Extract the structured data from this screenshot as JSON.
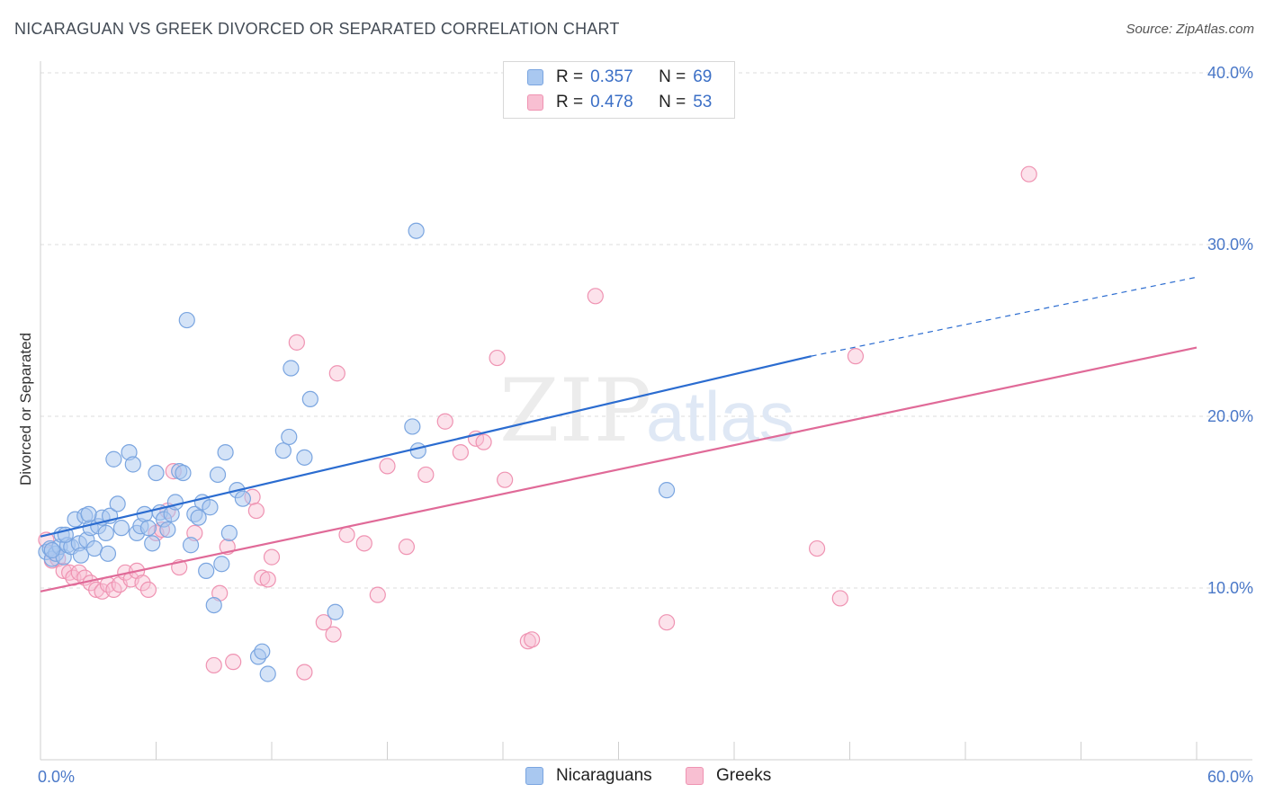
{
  "title": "NICARAGUAN VS GREEK DIVORCED OR SEPARATED CORRELATION CHART",
  "source": "Source: ZipAtlas.com",
  "watermark": {
    "zip": "ZIP",
    "atlas": "atlas"
  },
  "colors": {
    "blue_fill": "#a9c8f0",
    "blue_stroke": "#7aa5e0",
    "blue_line": "#2b6cd0",
    "pink_fill": "#f8bfd2",
    "pink_stroke": "#ef93b2",
    "pink_line": "#e06a98",
    "tick_text": "#4a78c8",
    "grid": "#dcdcdc"
  },
  "legend": {
    "rows": [
      {
        "r_label": "R =",
        "r_value": "0.357",
        "n_label": "N =",
        "n_value": "69",
        "color": "#a9c8f0",
        "border": "#7aa5e0"
      },
      {
        "r_label": "R =",
        "r_value": "0.478",
        "n_label": "N =",
        "n_value": "53",
        "color": "#f8bfd2",
        "border": "#ef93b2"
      }
    ]
  },
  "bottom_legend": [
    {
      "label": "Nicaraguans",
      "color": "#a9c8f0",
      "border": "#7aa5e0"
    },
    {
      "label": "Greeks",
      "color": "#f8bfd2",
      "border": "#ef93b2"
    }
  ],
  "chart_data": {
    "type": "scatter",
    "ylabel": "Divorced or Separated",
    "xlim": [
      0,
      60
    ],
    "ylim": [
      0,
      40
    ],
    "x_ticks": [
      {
        "value": 0,
        "label": "0.0%"
      },
      {
        "value": 60,
        "label": "60.0%"
      }
    ],
    "y_ticks": [
      {
        "value": 10,
        "label": "10.0%"
      },
      {
        "value": 20,
        "label": "20.0%"
      },
      {
        "value": 30,
        "label": "30.0%"
      },
      {
        "value": 40,
        "label": "40.0%"
      }
    ],
    "grid": true,
    "series": [
      {
        "name": "Nicaraguans",
        "trend": {
          "x": [
            0,
            40
          ],
          "y": [
            13.0,
            23.5
          ],
          "dashed_to_x": 60,
          "dashed_to_y": 28.1
        },
        "points": [
          [
            0.3,
            12.1
          ],
          [
            0.5,
            12.3
          ],
          [
            0.6,
            11.7
          ],
          [
            0.8,
            12.0
          ],
          [
            1.0,
            12.4
          ],
          [
            1.1,
            13.1
          ],
          [
            1.2,
            11.8
          ],
          [
            1.4,
            12.5
          ],
          [
            1.6,
            12.4
          ],
          [
            1.8,
            14.0
          ],
          [
            2.0,
            12.6
          ],
          [
            2.1,
            11.9
          ],
          [
            2.3,
            14.2
          ],
          [
            2.4,
            12.8
          ],
          [
            2.6,
            13.5
          ],
          [
            2.8,
            12.3
          ],
          [
            3.0,
            13.6
          ],
          [
            3.2,
            14.1
          ],
          [
            3.4,
            13.2
          ],
          [
            3.5,
            12.0
          ],
          [
            3.6,
            14.2
          ],
          [
            3.8,
            17.5
          ],
          [
            4.0,
            14.9
          ],
          [
            4.2,
            13.5
          ],
          [
            4.6,
            17.9
          ],
          [
            4.8,
            17.2
          ],
          [
            5.0,
            13.2
          ],
          [
            5.2,
            13.6
          ],
          [
            5.4,
            14.3
          ],
          [
            5.6,
            13.5
          ],
          [
            5.8,
            12.6
          ],
          [
            6.0,
            16.7
          ],
          [
            6.2,
            14.4
          ],
          [
            6.4,
            14.0
          ],
          [
            6.6,
            13.4
          ],
          [
            6.8,
            14.3
          ],
          [
            7.0,
            15.0
          ],
          [
            7.2,
            16.8
          ],
          [
            7.4,
            16.7
          ],
          [
            7.6,
            25.6
          ],
          [
            7.8,
            12.5
          ],
          [
            8.0,
            14.3
          ],
          [
            8.2,
            14.1
          ],
          [
            8.4,
            15.0
          ],
          [
            8.6,
            11.0
          ],
          [
            8.8,
            14.7
          ],
          [
            9.0,
            9.0
          ],
          [
            9.2,
            16.6
          ],
          [
            9.4,
            11.4
          ],
          [
            9.6,
            17.9
          ],
          [
            9.8,
            13.2
          ],
          [
            10.2,
            15.7
          ],
          [
            10.5,
            15.2
          ],
          [
            11.3,
            6.0
          ],
          [
            11.5,
            6.3
          ],
          [
            11.8,
            5.0
          ],
          [
            12.6,
            18.0
          ],
          [
            12.9,
            18.8
          ],
          [
            13.0,
            22.8
          ],
          [
            13.7,
            17.6
          ],
          [
            14.0,
            21.0
          ],
          [
            15.3,
            8.6
          ],
          [
            19.3,
            19.4
          ],
          [
            19.6,
            18.0
          ],
          [
            19.5,
            30.8
          ],
          [
            32.5,
            15.7
          ],
          [
            0.6,
            12.2
          ],
          [
            1.3,
            13.1
          ],
          [
            2.5,
            14.3
          ]
        ]
      },
      {
        "name": "Greeks",
        "trend": {
          "x": [
            0,
            60
          ],
          "y": [
            9.8,
            24.0
          ]
        },
        "points": [
          [
            0.3,
            12.8
          ],
          [
            0.6,
            11.6
          ],
          [
            0.9,
            11.7
          ],
          [
            1.2,
            11.0
          ],
          [
            1.5,
            10.9
          ],
          [
            1.7,
            10.6
          ],
          [
            2.0,
            10.9
          ],
          [
            2.3,
            10.6
          ],
          [
            2.6,
            10.3
          ],
          [
            2.9,
            9.9
          ],
          [
            3.2,
            9.8
          ],
          [
            3.5,
            10.2
          ],
          [
            3.8,
            9.9
          ],
          [
            4.1,
            10.2
          ],
          [
            4.4,
            10.9
          ],
          [
            4.7,
            10.5
          ],
          [
            5.0,
            11.0
          ],
          [
            5.3,
            10.3
          ],
          [
            5.6,
            9.9
          ],
          [
            6.0,
            13.2
          ],
          [
            6.3,
            13.4
          ],
          [
            6.6,
            14.5
          ],
          [
            6.9,
            16.8
          ],
          [
            7.2,
            11.2
          ],
          [
            8.0,
            13.2
          ],
          [
            9.0,
            5.5
          ],
          [
            9.3,
            9.7
          ],
          [
            9.7,
            12.4
          ],
          [
            10.0,
            5.7
          ],
          [
            11.0,
            15.3
          ],
          [
            11.2,
            14.5
          ],
          [
            11.5,
            10.6
          ],
          [
            11.8,
            10.5
          ],
          [
            12.0,
            11.8
          ],
          [
            13.3,
            24.3
          ],
          [
            13.7,
            5.1
          ],
          [
            14.7,
            8.0
          ],
          [
            15.2,
            7.3
          ],
          [
            15.4,
            22.5
          ],
          [
            15.9,
            13.1
          ],
          [
            16.8,
            12.6
          ],
          [
            17.5,
            9.6
          ],
          [
            18.0,
            17.1
          ],
          [
            19.0,
            12.4
          ],
          [
            20.0,
            16.6
          ],
          [
            21.0,
            19.7
          ],
          [
            21.8,
            17.9
          ],
          [
            22.6,
            18.7
          ],
          [
            23.0,
            18.5
          ],
          [
            23.7,
            23.4
          ],
          [
            24.1,
            16.3
          ],
          [
            25.3,
            6.9
          ],
          [
            25.5,
            7.0
          ]
        ],
        "extra_points": [
          [
            28.8,
            27.0
          ],
          [
            32.5,
            8.0
          ],
          [
            40.3,
            12.3
          ],
          [
            41.5,
            9.4
          ],
          [
            42.3,
            23.5
          ],
          [
            51.3,
            34.1
          ]
        ]
      }
    ]
  }
}
